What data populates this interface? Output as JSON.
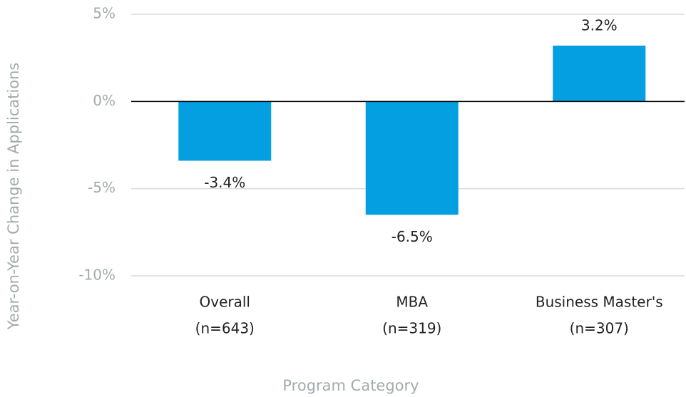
{
  "chart_data": {
    "type": "bar",
    "categories": [
      [
        "Overall",
        "(n=643)"
      ],
      [
        "MBA",
        "(n=319)"
      ],
      [
        "Business Master's",
        "(n=307)"
      ]
    ],
    "values": [
      -3.4,
      -6.5,
      3.2
    ],
    "value_labels": [
      "-3.4%",
      "-6.5%",
      "3.2%"
    ],
    "color": "#039fe0",
    "ylim": [
      -10,
      5
    ],
    "yticks": [
      {
        "value": -10,
        "label": "-10%"
      },
      {
        "value": -5,
        "label": "-5%"
      },
      {
        "value": 0,
        "label": "0%"
      },
      {
        "value": 5,
        "label": "5%"
      }
    ],
    "grid": true,
    "xlabel": "Program Category",
    "ylabel": "Year-on-Year Change in Applications"
  }
}
